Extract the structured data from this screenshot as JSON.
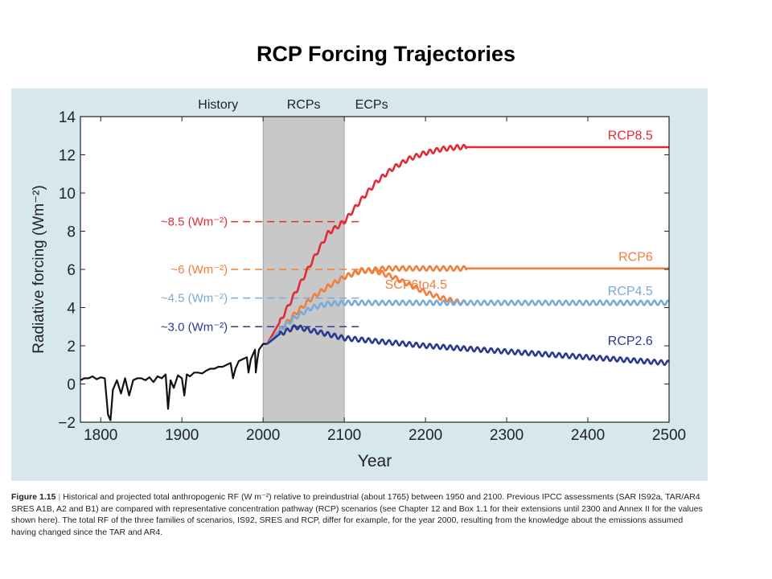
{
  "slide": {
    "title": "RCP Forcing Trajectories"
  },
  "chart_data": {
    "type": "line",
    "title": "",
    "xlabel": "Year",
    "ylabel": "Radiative forcing (Wm⁻²)",
    "xlim": [
      1775,
      2500
    ],
    "ylim": [
      -2,
      14
    ],
    "x_ticks": [
      1800,
      1900,
      2000,
      2100,
      2200,
      2300,
      2400,
      2500
    ],
    "y_ticks": [
      -2,
      0,
      2,
      4,
      6,
      8,
      10,
      12,
      14
    ],
    "grid": false,
    "periods": [
      {
        "label": "History",
        "x_start": 1775,
        "x_end": 2000
      },
      {
        "label": "RCPs",
        "x_start": 2000,
        "x_end": 2100,
        "shaded": true
      },
      {
        "label": "ECPs",
        "x_start": 2100,
        "x_end": 2500
      }
    ],
    "series": [
      {
        "name": "History",
        "color": "#111111",
        "x": [
          1775,
          1780,
          1785,
          1790,
          1795,
          1800,
          1805,
          1809,
          1812,
          1815,
          1820,
          1825,
          1830,
          1835,
          1840,
          1845,
          1850,
          1855,
          1860,
          1865,
          1870,
          1875,
          1880,
          1883,
          1886,
          1890,
          1895,
          1900,
          1903,
          1906,
          1910,
          1915,
          1920,
          1925,
          1930,
          1935,
          1940,
          1945,
          1950,
          1955,
          1960,
          1963,
          1966,
          1970,
          1975,
          1980,
          1982,
          1985,
          1990,
          1991,
          1993,
          1995,
          2000,
          2005
        ],
        "y": [
          0.2,
          0.3,
          0.3,
          0.4,
          0.25,
          0.35,
          0.3,
          -1.6,
          -1.9,
          -0.3,
          0.2,
          -0.5,
          0.3,
          -0.6,
          0.2,
          0.3,
          0.3,
          0.2,
          0.35,
          0.1,
          0.4,
          0.3,
          0.5,
          -1.3,
          0.2,
          -0.2,
          0.45,
          0.3,
          -0.6,
          0.5,
          0.4,
          0.6,
          0.6,
          0.55,
          0.7,
          0.8,
          0.8,
          0.9,
          0.9,
          1.0,
          1.1,
          0.3,
          0.8,
          1.2,
          1.3,
          1.4,
          0.6,
          1.3,
          1.8,
          0.6,
          1.3,
          1.8,
          2.1,
          2.1
        ]
      },
      {
        "name": "RCP8.5",
        "color": "#e32b35",
        "x": [
          2005,
          2020,
          2040,
          2060,
          2080,
          2100,
          2120,
          2140,
          2160,
          2180,
          2200,
          2220,
          2240,
          2250,
          2300,
          2400,
          2500
        ],
        "y": [
          2.1,
          3.2,
          4.8,
          6.4,
          7.9,
          8.5,
          9.6,
          10.6,
          11.3,
          11.8,
          12.1,
          12.3,
          12.4,
          12.4,
          12.4,
          12.4,
          12.4
        ]
      },
      {
        "name": "RCP6",
        "color": "#f07e3c",
        "x": [
          2005,
          2020,
          2040,
          2060,
          2080,
          2100,
          2120,
          2140,
          2150,
          2200,
          2300,
          2400,
          2500
        ],
        "y": [
          2.1,
          2.8,
          3.7,
          4.5,
          5.1,
          5.6,
          5.9,
          6.0,
          6.05,
          6.05,
          6.05,
          6.05,
          6.05
        ]
      },
      {
        "name": "SCP6to4.5",
        "color": "#f07e3c",
        "x": [
          2100,
          2120,
          2140,
          2160,
          2180,
          2200,
          2220,
          2240,
          2250
        ],
        "y": [
          5.6,
          5.95,
          5.9,
          5.6,
          5.2,
          4.8,
          4.5,
          4.3,
          4.25
        ]
      },
      {
        "name": "RCP4.5",
        "color": "#7aaad6",
        "x": [
          2005,
          2020,
          2040,
          2060,
          2080,
          2100,
          2150,
          2200,
          2300,
          2400,
          2500
        ],
        "y": [
          2.1,
          2.8,
          3.5,
          4.0,
          4.2,
          4.25,
          4.25,
          4.25,
          4.25,
          4.25,
          4.25
        ]
      },
      {
        "name": "RCP2.6",
        "color": "#2a3b8f",
        "x": [
          2005,
          2020,
          2040,
          2060,
          2080,
          2100,
          2150,
          2200,
          2250,
          2300,
          2350,
          2400,
          2450,
          2500
        ],
        "y": [
          2.1,
          2.6,
          3.0,
          2.8,
          2.6,
          2.4,
          2.2,
          2.0,
          1.85,
          1.7,
          1.55,
          1.4,
          1.25,
          1.1
        ]
      }
    ],
    "series_labels": [
      {
        "text": "RCP8.5",
        "x": 2480,
        "y": 12.8,
        "color": "#e32b35"
      },
      {
        "text": "RCP6",
        "x": 2480,
        "y": 6.45,
        "color": "#f07e3c"
      },
      {
        "text": "SCP6to4.5",
        "x": 2150,
        "y": 5.0,
        "color": "#f07e3c"
      },
      {
        "text": "RCP4.5",
        "x": 2480,
        "y": 4.65,
        "color": "#7aaad6"
      },
      {
        "text": "RCP2.6",
        "x": 2480,
        "y": 2.05,
        "color": "#2a3b8f"
      }
    ],
    "annotations": [
      {
        "text": "~8.5 (Wm⁻²)",
        "y": 8.5,
        "color": "#e32b35"
      },
      {
        "text": "~6 (Wm⁻²)",
        "y": 6.0,
        "color": "#f07e3c"
      },
      {
        "text": "~4.5 (Wm⁻²)",
        "y": 4.5,
        "color": "#7aaad6"
      },
      {
        "text": "~3.0 (Wm⁻²)",
        "y": 3.0,
        "color": "#2a3b8f"
      }
    ],
    "annotation_line_x": [
      2070,
      2120
    ],
    "colors": {
      "panel_bg": "#d6e8ee",
      "plot_bg": "#ffffff",
      "shade": "#c8c8c8",
      "axis": "#222222"
    }
  },
  "caption": {
    "label": "Figure 1.15",
    "text": "Historical and projected total anthropogenic RF (W m⁻²) relative to preindustrial (about 1765) between 1950 and 2100. Previous IPCC assessments (SAR IS92a, TAR/AR4 SRES A1B, A2 and B1) are compared with representative concentration pathway (RCP) scenarios (see Chapter 12 and Box 1.1 for their extensions until 2300 and Annex II for the values shown here). The total RF of the three families of scenarios, IS92, SRES and RCP, differ for example, for the year 2000, resulting from the knowledge about the emissions assumed having changed since the TAR and AR4."
  }
}
